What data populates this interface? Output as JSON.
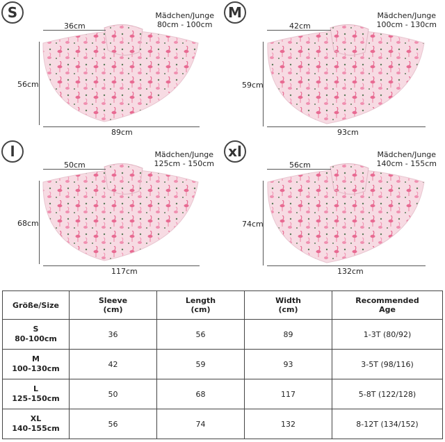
{
  "panels": [
    {
      "badge": "S",
      "age_top": "Mädchen/Junge",
      "age_bottom": "80cm - 100cm",
      "sleeve": "36cm",
      "length": "56cm",
      "width": "89cm"
    },
    {
      "badge": "M",
      "age_top": "Mädchen/Junge",
      "age_bottom": "100cm - 130cm",
      "sleeve": "42cm",
      "length": "59cm",
      "width": "93cm"
    },
    {
      "badge": "l",
      "age_top": "Mädchen/Junge",
      "age_bottom": "125cm - 150cm",
      "sleeve": "50cm",
      "length": "68cm",
      "width": "117cm"
    },
    {
      "badge": "xl",
      "age_top": "Mädchen/Junge",
      "age_bottom": "140cm - 155cm",
      "sleeve": "56cm",
      "length": "74cm",
      "width": "132cm"
    }
  ],
  "table": {
    "headers": [
      "Größe/Size",
      "Sleeve\n(cm)",
      "Length\n(cm)",
      "Width\n(cm)",
      "Recommended\nAge"
    ],
    "rows": [
      {
        "size": "S",
        "range": "80-100cm",
        "sleeve": "36",
        "length": "56",
        "width": "89",
        "age": "1-3T (80/92)"
      },
      {
        "size": "M",
        "range": "100-130cm",
        "sleeve": "42",
        "length": "59",
        "width": "93",
        "age": "3-5T (98/116)"
      },
      {
        "size": "L",
        "range": "125-150cm",
        "sleeve": "50",
        "length": "68",
        "width": "117",
        "age": "5-8T (122/128)"
      },
      {
        "size": "XL",
        "range": "140-155cm",
        "sleeve": "56",
        "length": "74",
        "width": "132",
        "age": "8-12T (134/152)"
      }
    ]
  },
  "colors": {
    "fabric": "#f7dbe3",
    "flamingo": "#e86a92",
    "leaf": "#5a7a5a"
  }
}
